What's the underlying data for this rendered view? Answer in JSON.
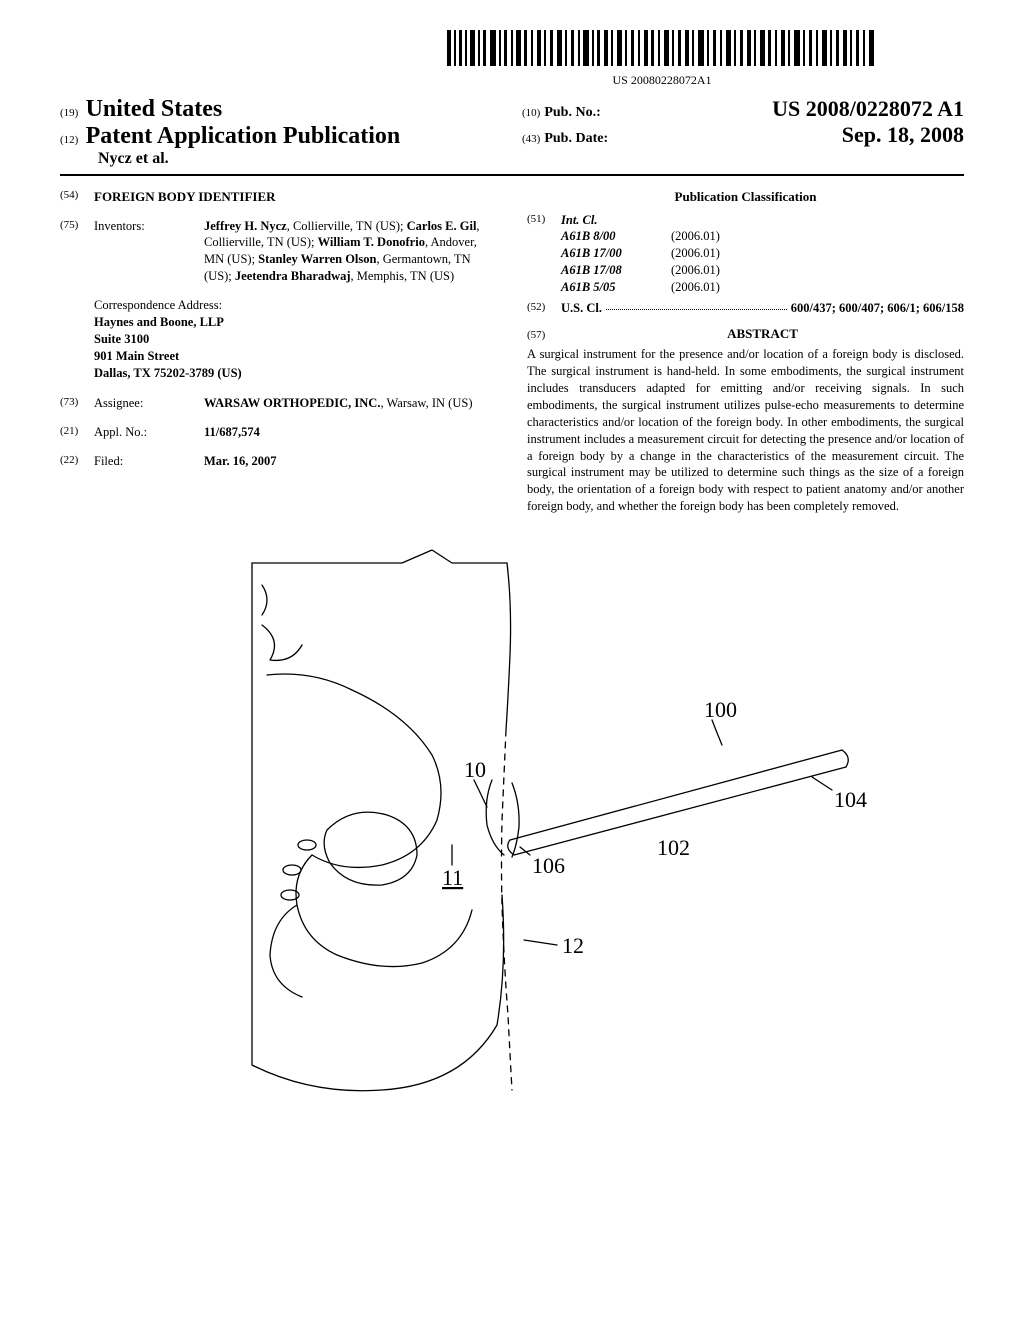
{
  "barcode_text": "US 20080228072A1",
  "header": {
    "country_num": "(19)",
    "country": "United States",
    "pubtype_num": "(12)",
    "pubtype": "Patent Application Publication",
    "author_line": "Nycz et al.",
    "pubno_num": "(10)",
    "pubno_label": "Pub. No.:",
    "pubno": "US 2008/0228072 A1",
    "pubdate_num": "(43)",
    "pubdate_label": "Pub. Date:",
    "pubdate": "Sep. 18, 2008"
  },
  "left": {
    "title_num": "(54)",
    "title": "FOREIGN BODY IDENTIFIER",
    "inventors_num": "(75)",
    "inventors_label": "Inventors:",
    "inventors_html": "Jeffrey H. Nycz|, Collierville, TN (US); |Carlos E. Gil|, Collierville, TN (US); |William T. Donofrio|, Andover, MN (US); |Stanley Warren Olson|, Germantown, TN (US); |Jeetendra Bharadwaj|, Memphis, TN (US)",
    "corr_label": "Correspondence Address:",
    "corr_lines": [
      "Haynes and Boone, LLP",
      "Suite 3100",
      "901 Main Street",
      "Dallas, TX 75202-3789 (US)"
    ],
    "assignee_num": "(73)",
    "assignee_label": "Assignee:",
    "assignee_name": "WARSAW ORTHOPEDIC, INC.",
    "assignee_loc": "Warsaw, IN (US)",
    "applno_num": "(21)",
    "applno_label": "Appl. No.:",
    "applno": "11/687,574",
    "filed_num": "(22)",
    "filed_label": "Filed:",
    "filed": "Mar. 16, 2007"
  },
  "right": {
    "class_heading": "Publication Classification",
    "intcl_num": "(51)",
    "intcl_label": "Int. Cl.",
    "intcl": [
      {
        "code": "A61B 8/00",
        "year": "(2006.01)"
      },
      {
        "code": "A61B 17/00",
        "year": "(2006.01)"
      },
      {
        "code": "A61B 17/08",
        "year": "(2006.01)"
      },
      {
        "code": "A61B 5/05",
        "year": "(2006.01)"
      }
    ],
    "uscl_num": "(52)",
    "uscl_label": "U.S. Cl.",
    "uscl_codes": "600/437; 600/407; 606/1; 606/158",
    "abstract_num": "(57)",
    "abstract_heading": "ABSTRACT",
    "abstract": "A surgical instrument for the presence and/or location of a foreign body is disclosed. The surgical instrument is hand-held. In some embodiments, the surgical instrument includes transducers adapted for emitting and/or receiving signals. In such embodiments, the surgical instrument utilizes pulse-echo measurements to determine characteristics and/or location of the foreign body. In other embodiments, the surgical instrument includes a measurement circuit for detecting the presence and/or location of a foreign body by a change in the characteristics of the measurement circuit. The surgical instrument may be utilized to determine such things as the size of a foreign body, the orientation of a foreign body with respect to patient anatomy and/or another foreign body, and whether the foreign body has been completely removed."
  },
  "figure": {
    "labels": {
      "a": "100",
      "b": "104",
      "c": "102",
      "d": "106",
      "e": "10",
      "f": "11",
      "g": "12"
    },
    "stroke": "#000000",
    "stroke_width": 1.3
  }
}
